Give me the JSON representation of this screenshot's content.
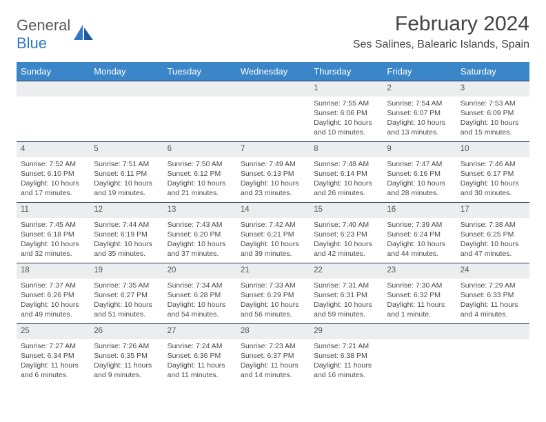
{
  "logo": {
    "text1": "General",
    "text2": "Blue"
  },
  "title": "February 2024",
  "location": "Ses Salines, Balearic Islands, Spain",
  "columns": [
    "Sunday",
    "Monday",
    "Tuesday",
    "Wednesday",
    "Thursday",
    "Friday",
    "Saturday"
  ],
  "colors": {
    "header_bg": "#3b86c8",
    "header_text": "#ffffff",
    "daybar_bg": "#ecedee",
    "daybar_border": "#2a3a55",
    "body_text": "#4a4a4a",
    "logo_gray": "#5a5a5a",
    "logo_blue": "#2f78c4"
  },
  "weeks": [
    [
      null,
      null,
      null,
      null,
      {
        "n": "1",
        "sunrise": "7:55 AM",
        "sunset": "6:06 PM",
        "daylight": "10 hours and 10 minutes."
      },
      {
        "n": "2",
        "sunrise": "7:54 AM",
        "sunset": "6:07 PM",
        "daylight": "10 hours and 13 minutes."
      },
      {
        "n": "3",
        "sunrise": "7:53 AM",
        "sunset": "6:09 PM",
        "daylight": "10 hours and 15 minutes."
      }
    ],
    [
      {
        "n": "4",
        "sunrise": "7:52 AM",
        "sunset": "6:10 PM",
        "daylight": "10 hours and 17 minutes."
      },
      {
        "n": "5",
        "sunrise": "7:51 AM",
        "sunset": "6:11 PM",
        "daylight": "10 hours and 19 minutes."
      },
      {
        "n": "6",
        "sunrise": "7:50 AM",
        "sunset": "6:12 PM",
        "daylight": "10 hours and 21 minutes."
      },
      {
        "n": "7",
        "sunrise": "7:49 AM",
        "sunset": "6:13 PM",
        "daylight": "10 hours and 23 minutes."
      },
      {
        "n": "8",
        "sunrise": "7:48 AM",
        "sunset": "6:14 PM",
        "daylight": "10 hours and 26 minutes."
      },
      {
        "n": "9",
        "sunrise": "7:47 AM",
        "sunset": "6:16 PM",
        "daylight": "10 hours and 28 minutes."
      },
      {
        "n": "10",
        "sunrise": "7:46 AM",
        "sunset": "6:17 PM",
        "daylight": "10 hours and 30 minutes."
      }
    ],
    [
      {
        "n": "11",
        "sunrise": "7:45 AM",
        "sunset": "6:18 PM",
        "daylight": "10 hours and 32 minutes."
      },
      {
        "n": "12",
        "sunrise": "7:44 AM",
        "sunset": "6:19 PM",
        "daylight": "10 hours and 35 minutes."
      },
      {
        "n": "13",
        "sunrise": "7:43 AM",
        "sunset": "6:20 PM",
        "daylight": "10 hours and 37 minutes."
      },
      {
        "n": "14",
        "sunrise": "7:42 AM",
        "sunset": "6:21 PM",
        "daylight": "10 hours and 39 minutes."
      },
      {
        "n": "15",
        "sunrise": "7:40 AM",
        "sunset": "6:23 PM",
        "daylight": "10 hours and 42 minutes."
      },
      {
        "n": "16",
        "sunrise": "7:39 AM",
        "sunset": "6:24 PM",
        "daylight": "10 hours and 44 minutes."
      },
      {
        "n": "17",
        "sunrise": "7:38 AM",
        "sunset": "6:25 PM",
        "daylight": "10 hours and 47 minutes."
      }
    ],
    [
      {
        "n": "18",
        "sunrise": "7:37 AM",
        "sunset": "6:26 PM",
        "daylight": "10 hours and 49 minutes."
      },
      {
        "n": "19",
        "sunrise": "7:35 AM",
        "sunset": "6:27 PM",
        "daylight": "10 hours and 51 minutes."
      },
      {
        "n": "20",
        "sunrise": "7:34 AM",
        "sunset": "6:28 PM",
        "daylight": "10 hours and 54 minutes."
      },
      {
        "n": "21",
        "sunrise": "7:33 AM",
        "sunset": "6:29 PM",
        "daylight": "10 hours and 56 minutes."
      },
      {
        "n": "22",
        "sunrise": "7:31 AM",
        "sunset": "6:31 PM",
        "daylight": "10 hours and 59 minutes."
      },
      {
        "n": "23",
        "sunrise": "7:30 AM",
        "sunset": "6:32 PM",
        "daylight": "11 hours and 1 minute."
      },
      {
        "n": "24",
        "sunrise": "7:29 AM",
        "sunset": "6:33 PM",
        "daylight": "11 hours and 4 minutes."
      }
    ],
    [
      {
        "n": "25",
        "sunrise": "7:27 AM",
        "sunset": "6:34 PM",
        "daylight": "11 hours and 6 minutes."
      },
      {
        "n": "26",
        "sunrise": "7:26 AM",
        "sunset": "6:35 PM",
        "daylight": "11 hours and 9 minutes."
      },
      {
        "n": "27",
        "sunrise": "7:24 AM",
        "sunset": "6:36 PM",
        "daylight": "11 hours and 11 minutes."
      },
      {
        "n": "28",
        "sunrise": "7:23 AM",
        "sunset": "6:37 PM",
        "daylight": "11 hours and 14 minutes."
      },
      {
        "n": "29",
        "sunrise": "7:21 AM",
        "sunset": "6:38 PM",
        "daylight": "11 hours and 16 minutes."
      },
      null,
      null
    ]
  ],
  "labels": {
    "sunrise": "Sunrise:",
    "sunset": "Sunset:",
    "daylight": "Daylight:"
  }
}
